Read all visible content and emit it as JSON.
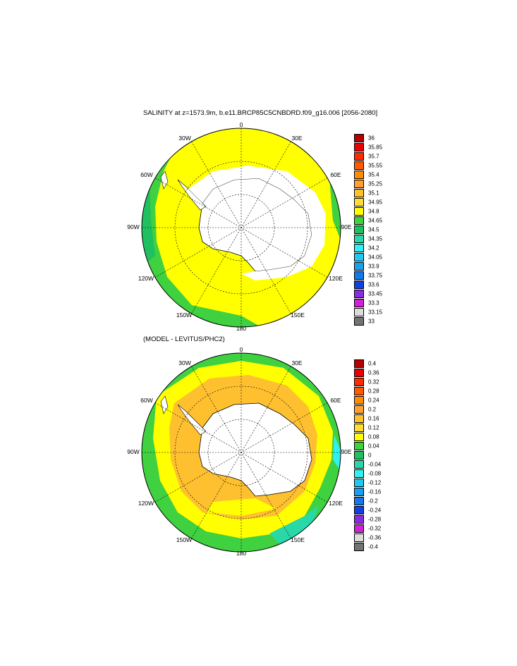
{
  "panel1": {
    "title": "SALINITY at z=1573.9m, b.e11.BRCP85C5CNBDRD.f09_g16.006 [2056-2080]",
    "lon_labels": {
      "n": "0",
      "ne": "30E",
      "e1": "60E",
      "e2": "90E",
      "e3": "120E",
      "se": "150E",
      "s": "180",
      "sw": "150W",
      "w3": "120W",
      "w2": "90W",
      "w1": "60W",
      "nw": "30W"
    },
    "colorbar_levels": [
      "36",
      "35.85",
      "35.7",
      "35.55",
      "35.4",
      "35.25",
      "35.1",
      "34.95",
      "34.8",
      "34.65",
      "34.5",
      "34.35",
      "34.2",
      "34.05",
      "33.9",
      "33.75",
      "33.6",
      "33.45",
      "33.3",
      "33.15",
      "33"
    ],
    "colorbar_colors": [
      "#b40000",
      "#e60000",
      "#ff2a00",
      "#ff5a00",
      "#ff8c00",
      "#ffa030",
      "#ffc030",
      "#ffdd30",
      "#ffff00",
      "#3fd13f",
      "#20c060",
      "#28d8a8",
      "#30f0f0",
      "#20c8f0",
      "#1a9ef0",
      "#1478e8",
      "#1040e0",
      "#8a2be2",
      "#d020d8",
      "#dcdcdc",
      "#737373"
    ]
  },
  "panel2": {
    "title": "(MODEL - LEVITUS/PHC2)",
    "lon_labels": {
      "n": "0",
      "ne": "30E",
      "e1": "60E",
      "e2": "90E",
      "e3": "120E",
      "se": "150E",
      "s": "180",
      "sw": "150W",
      "w3": "120W",
      "w2": "90W",
      "w1": "60W",
      "nw": "30W"
    },
    "colorbar_levels": [
      "0.4",
      "0.36",
      "0.32",
      "0.28",
      "0.24",
      "0.2",
      "0.16",
      "0.12",
      "0.08",
      "0.04",
      "0",
      "-0.04",
      "-0.08",
      "-0.12",
      "-0.16",
      "-0.2",
      "-0.24",
      "-0.28",
      "-0.32",
      "-0.36",
      "-0.4"
    ],
    "colorbar_colors": [
      "#b40000",
      "#e60000",
      "#ff2a00",
      "#ff5a00",
      "#ff8c00",
      "#ffa030",
      "#ffc030",
      "#ffdd30",
      "#ffff00",
      "#3fd13f",
      "#20c060",
      "#28d8a8",
      "#30f0f0",
      "#20c8f0",
      "#1a9ef0",
      "#1478e8",
      "#1040e0",
      "#8a2be2",
      "#d020d8",
      "#dcdcdc",
      "#737373"
    ]
  },
  "colors": {
    "yellow": "#ffff00",
    "orange": "#ffc030",
    "green": "#3fd13f",
    "dark_green": "#20c060",
    "teal": "#28d8a8",
    "land": "#ffffff",
    "grid": "#000000"
  }
}
